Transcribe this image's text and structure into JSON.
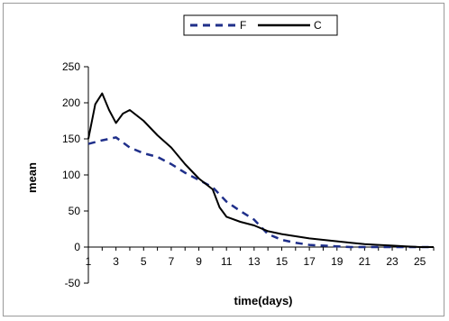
{
  "chart_data": {
    "type": "line",
    "title": "",
    "xlabel": "time(days)",
    "ylabel": "mean",
    "x_ticks": [
      "1",
      "3",
      "5",
      "7",
      "9",
      "11",
      "13",
      "15",
      "17",
      "19",
      "21",
      "23",
      "25"
    ],
    "xlim": [
      1,
      26
    ],
    "ylim": [
      -50,
      250
    ],
    "y_ticks": [
      "-50",
      "0",
      "50",
      "100",
      "150",
      "200",
      "250"
    ],
    "grid": false,
    "legend_position": "top",
    "series": [
      {
        "name": "F",
        "color": "#1f2f8a",
        "style": "dashed",
        "x": [
          1,
          2,
          3,
          4,
          5,
          6,
          7,
          8,
          9,
          10,
          11,
          12,
          13,
          14,
          15,
          16,
          17,
          18,
          19,
          20,
          21,
          22,
          23,
          24,
          25,
          26
        ],
        "y": [
          143,
          148,
          152,
          138,
          130,
          125,
          115,
          103,
          93,
          83,
          63,
          50,
          38,
          18,
          10,
          6,
          3,
          2,
          1,
          0,
          0,
          0,
          0,
          0,
          0,
          0
        ]
      },
      {
        "name": "C",
        "color": "#000000",
        "style": "solid",
        "x": [
          1,
          1.5,
          2,
          2.5,
          3,
          3.5,
          4,
          5,
          6,
          7,
          8,
          9,
          10,
          10.5,
          11,
          12,
          13,
          14,
          15,
          16,
          17,
          18,
          19,
          20,
          21,
          22,
          23,
          24,
          25,
          26
        ],
        "y": [
          150,
          198,
          213,
          190,
          172,
          185,
          190,
          175,
          155,
          138,
          115,
          95,
          80,
          55,
          42,
          35,
          30,
          22,
          18,
          15,
          12,
          10,
          8,
          6,
          4,
          3,
          2,
          1,
          0,
          0
        ]
      }
    ]
  }
}
